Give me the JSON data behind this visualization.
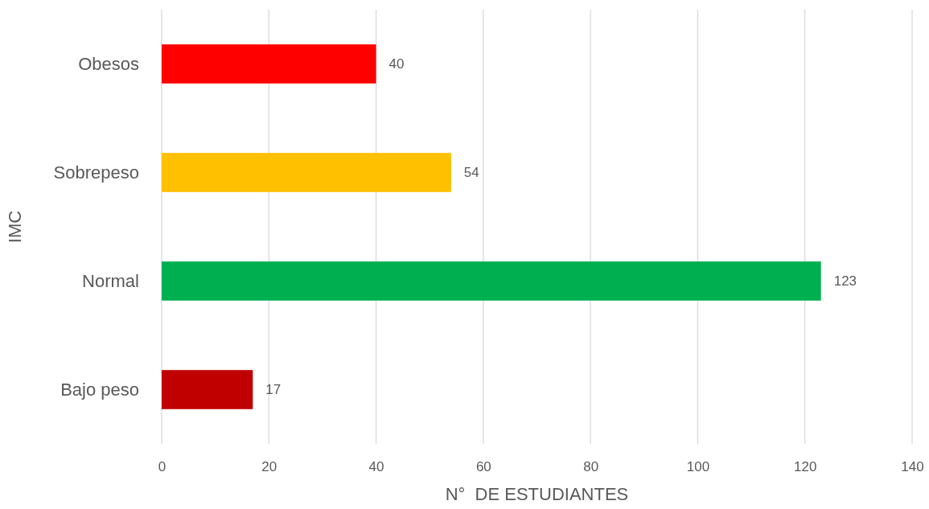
{
  "chart_data": {
    "type": "bar",
    "orientation": "horizontal",
    "categories": [
      "Obesos",
      "Sobrepeso",
      "Normal",
      "Bajo peso"
    ],
    "values": [
      40,
      54,
      123,
      17
    ],
    "colors": [
      "#ff0000",
      "#ffc000",
      "#00b050",
      "#c00000"
    ],
    "xlabel": "N°  DE ESTUDIANTES",
    "ylabel": "IMC",
    "xlim": [
      0,
      140
    ],
    "xticks": [
      0,
      20,
      40,
      60,
      80,
      100,
      120,
      140
    ],
    "grid": "x",
    "data_labels": true
  }
}
